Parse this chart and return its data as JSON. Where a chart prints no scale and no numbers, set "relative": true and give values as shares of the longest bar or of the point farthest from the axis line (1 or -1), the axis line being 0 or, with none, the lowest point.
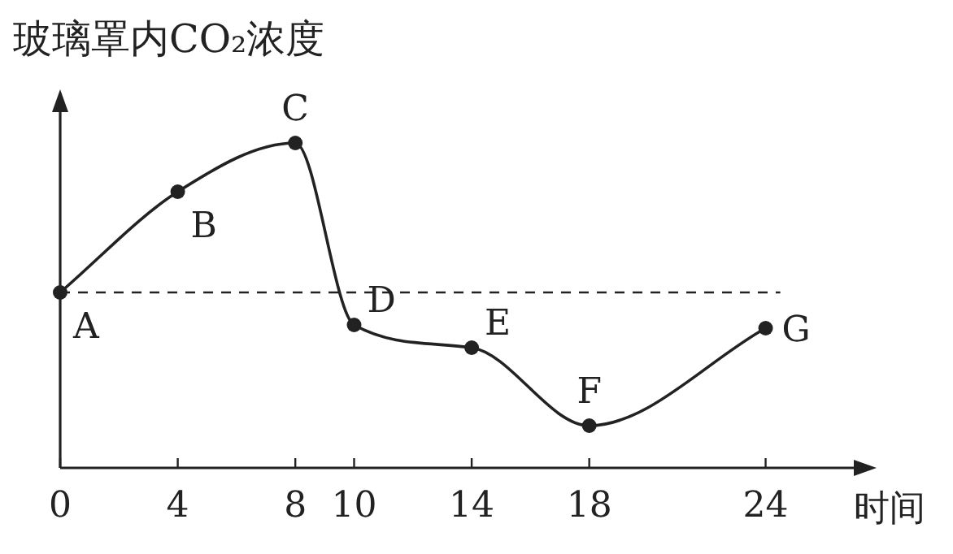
{
  "chart_data": {
    "type": "line",
    "relative": true,
    "ylabel": "玻璃罩内CO₂浓度",
    "xlabel": "时间",
    "x": [
      0,
      4,
      8,
      10,
      14,
      18,
      24
    ],
    "xlim": [
      0,
      27
    ],
    "xticks": [
      0,
      4,
      8,
      10,
      14,
      18,
      24
    ],
    "series": [
      {
        "color": "#222222",
        "values": [
          0.54,
          0.85,
          1,
          0.44,
          0.37,
          0.13,
          0.43
        ]
      }
    ],
    "marker": "circle",
    "line_style": "solid",
    "grid": false,
    "ref_lines": [
      {
        "axis": "y",
        "value": 0.54,
        "line_style": "dashed",
        "color": "#222222"
      }
    ],
    "annotations": [
      {
        "text": "A",
        "x": 0,
        "y": 0.54
      },
      {
        "text": "B",
        "x": 4,
        "y": 0.85
      },
      {
        "text": "C",
        "x": 8,
        "y": 1
      },
      {
        "text": "D",
        "x": 10,
        "y": 0.44
      },
      {
        "text": "E",
        "x": 14,
        "y": 0.37
      },
      {
        "text": "F",
        "x": 18,
        "y": 0.13
      },
      {
        "text": "G",
        "x": 24,
        "y": 0.43
      }
    ]
  }
}
